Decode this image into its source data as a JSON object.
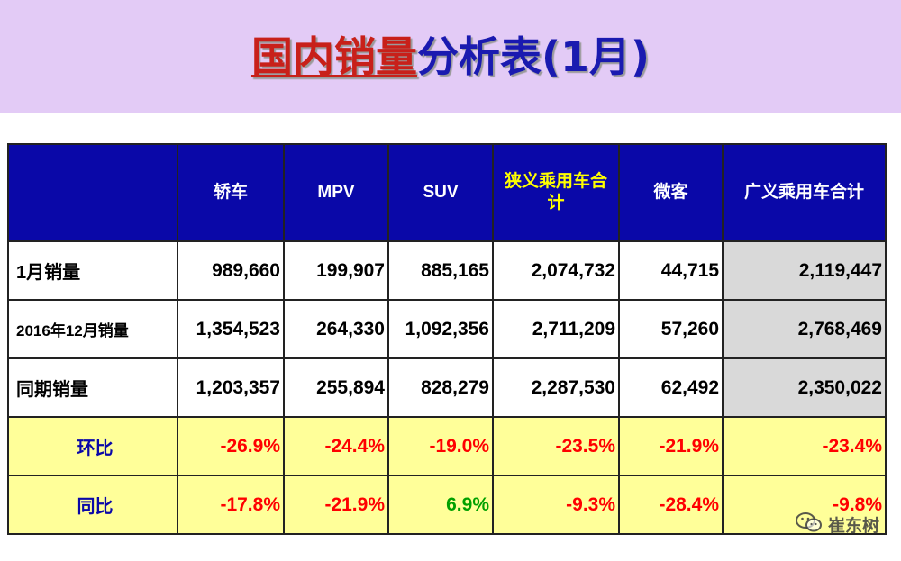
{
  "title": {
    "highlight": "国内销量",
    "rest": "分析表(1月)"
  },
  "table": {
    "headers": [
      "",
      "轿车",
      "MPV",
      "SUV",
      "狭义乘用车合计",
      "微客",
      "广义乘用车合计"
    ],
    "rows": [
      {
        "label": "1月销量",
        "values": [
          "989,660",
          "199,907",
          "885,165",
          "2,074,732",
          "44,715",
          "2,119,447"
        ]
      },
      {
        "label": "2016年12月销量",
        "values": [
          "1,354,523",
          "264,330",
          "1,092,356",
          "2,711,209",
          "57,260",
          "2,768,469"
        ]
      },
      {
        "label": "同期销量",
        "values": [
          "1,203,357",
          "255,894",
          "828,279",
          "2,287,530",
          "62,492",
          "2,350,022"
        ]
      },
      {
        "label": "环比",
        "values": [
          "-26.9%",
          "-24.4%",
          "-19.0%",
          "-23.5%",
          "-21.9%",
          "-23.4%"
        ]
      },
      {
        "label": "同比",
        "values": [
          "-17.8%",
          "-21.9%",
          "6.9%",
          "-9.3%",
          "-28.4%",
          "-9.8%"
        ]
      }
    ]
  },
  "watermark": {
    "text": "崔东树"
  },
  "colors": {
    "banner": "#e3cbf6",
    "header_bg": "#0a08a8",
    "header_highlight": "#ffff00",
    "pct_row_bg": "#ffff99",
    "negative": "#ff0000",
    "positive": "#00a000",
    "total_col_bg": "#d9d9d9"
  }
}
